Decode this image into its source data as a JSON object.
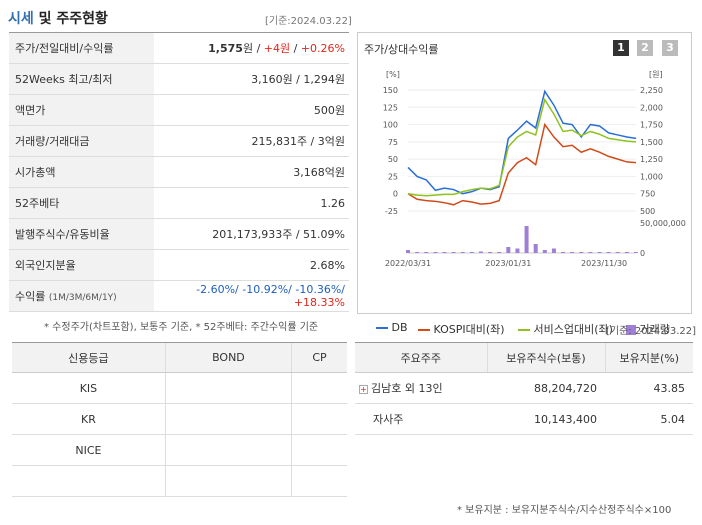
{
  "header": {
    "title_blue": "시세",
    "title_rest": " 및 주주현황",
    "base_date": "[기준:2024.03.22]"
  },
  "quote": {
    "rows": [
      {
        "label": "주가/전일대비/수익률"
      },
      {
        "label": "52Weeks 최고/최저",
        "value": "3,160원 / 1,294원"
      },
      {
        "label": "액면가",
        "value": "500원"
      },
      {
        "label": "거래량/거래대금",
        "value": "215,831주 / 3억원"
      },
      {
        "label": "시가총액",
        "value": "3,168억원"
      },
      {
        "label": "52주베타",
        "value": "1.26"
      },
      {
        "label": "발행주식수/유동비율",
        "value": "201,173,933주 / 51.09%"
      },
      {
        "label": "외국인지분율",
        "value": "2.68%"
      },
      {
        "label": "수익률",
        "label_sub": "(1M/3M/6M/1Y)"
      }
    ],
    "price": "1,575",
    "price_unit": "원",
    "change": "+4원",
    "change_pct": "+0.26%",
    "returns": [
      "-2.60%/",
      "-10.92%/",
      "-10.36%/",
      "+18.33%"
    ]
  },
  "quote_note": "* 수정주가(차트포함), 보통주 기준, * 52주베타: 주간수익률 기준",
  "chart": {
    "title": "주가/상대수익률",
    "pages": [
      "1",
      "2",
      "3"
    ],
    "left_unit": "[%]",
    "right_unit": "[원]",
    "left_ticks": [
      "150",
      "125",
      "100",
      "75",
      "50",
      "25",
      "0",
      "-25"
    ],
    "right_ticks": [
      "2,250",
      "2,000",
      "1,750",
      "1,500",
      "1,250",
      "1,000",
      "750",
      "500"
    ],
    "vol_tick": "50,000,000",
    "vol_zero": "0",
    "x_ticks": [
      "2022/03/31",
      "2023/01/31",
      "2023/11/30"
    ],
    "legend": [
      "DB",
      "KOSPI대비(좌)",
      "서비스업대비(좌)",
      "거래량"
    ],
    "colors": {
      "db": "#2a6fd6",
      "kospi": "#d24a1a",
      "service": "#8fc21f",
      "volume": "#a07fd6"
    }
  },
  "chart_data": {
    "type": "line",
    "x": [
      0,
      1,
      2,
      3,
      4,
      5,
      6,
      7,
      8,
      9,
      10,
      11,
      12,
      13,
      14,
      15,
      16,
      17,
      18,
      19,
      20,
      21,
      22,
      23,
      24,
      25
    ],
    "series": [
      {
        "name": "DB",
        "values": [
          38,
          25,
          20,
          5,
          8,
          6,
          0,
          3,
          8,
          6,
          10,
          80,
          92,
          105,
          95,
          148,
          128,
          102,
          100,
          82,
          100,
          98,
          88,
          85,
          82,
          80
        ]
      },
      {
        "name": "KOSPI대비(좌)",
        "values": [
          0,
          -8,
          -10,
          -11,
          -13,
          -16,
          -10,
          -12,
          -15,
          -14,
          -10,
          30,
          45,
          52,
          42,
          100,
          82,
          68,
          70,
          60,
          65,
          60,
          54,
          50,
          46,
          45
        ]
      },
      {
        "name": "서비스업대비(좌)",
        "values": [
          0,
          -2,
          -3,
          -2,
          -1,
          -1,
          3,
          6,
          8,
          7,
          12,
          68,
          82,
          90,
          85,
          136,
          115,
          90,
          92,
          84,
          90,
          86,
          80,
          78,
          76,
          75
        ]
      }
    ],
    "volume": [
      0.1,
      0.02,
      0.01,
      0.01,
      0.01,
      0.01,
      0.01,
      0.01,
      0.05,
      0.01,
      0.01,
      0.2,
      0.15,
      0.9,
      0.3,
      0.1,
      0.15,
      0.02,
      0.01,
      0.01,
      0.01,
      0.01,
      0.01,
      0.01,
      0.01,
      0.01
    ],
    "ylim": [
      -25,
      160
    ],
    "x_tick_labels": [
      "2022/03/31",
      "2023/01/31",
      "2023/11/30"
    ]
  },
  "base_date2": "[기준: 2024.03.22]",
  "bond": {
    "headers": [
      "신용등급",
      "BOND",
      "CP"
    ],
    "rows": [
      [
        "KIS",
        "",
        ""
      ],
      [
        "KR",
        "",
        ""
      ],
      [
        "NICE",
        "",
        ""
      ],
      [
        "",
        "",
        ""
      ]
    ]
  },
  "shareholders": {
    "headers": [
      "주요주주",
      "보유주식수(보통)",
      "보유지분(%)"
    ],
    "rows": [
      {
        "name": "김남호 외 13인",
        "shares": "88,204,720",
        "pct": "43.85",
        "expand": "+"
      },
      {
        "name": "자사주",
        "shares": "10,143,400",
        "pct": "5.04"
      }
    ]
  },
  "shareholders_note": "* 보유지분 : 보유지분주식수/지수산정주식수×100"
}
